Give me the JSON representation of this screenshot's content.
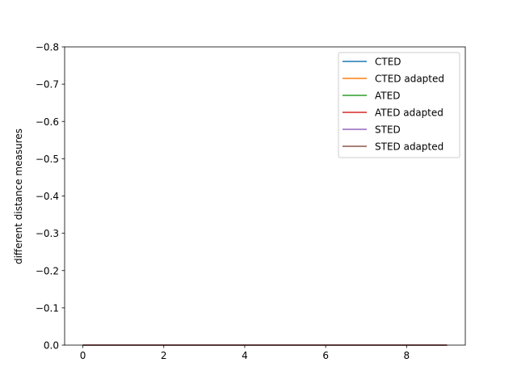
{
  "chart_data": {
    "type": "line",
    "title": "",
    "xlabel": "",
    "ylabel": "different distance measures",
    "xlim": [
      -0.45,
      9.45
    ],
    "ylim": [
      0.0,
      -0.8
    ],
    "y_inverted": true,
    "x_ticks": [
      0,
      2,
      4,
      6,
      8
    ],
    "x_tick_labels": [
      "0",
      "2",
      "4",
      "6",
      "8"
    ],
    "y_ticks": [
      0.0,
      -0.1,
      -0.2,
      -0.3,
      -0.4,
      -0.5,
      -0.6,
      -0.7,
      -0.8
    ],
    "y_tick_labels": [
      "0.0",
      "−0.1",
      "−0.2",
      "−0.3",
      "−0.4",
      "−0.5",
      "−0.6",
      "−0.7",
      "−0.8"
    ],
    "grid": false,
    "legend_position": "top-right",
    "series": [
      {
        "name": "CTED",
        "color": "#1f77b4",
        "x": [
          0,
          1,
          2,
          3,
          4,
          5,
          6,
          7,
          8,
          9
        ],
        "values": [
          0,
          0,
          0,
          0,
          0,
          0,
          0,
          0,
          0,
          0
        ]
      },
      {
        "name": "CTED adapted",
        "color": "#ff7f0e",
        "x": [
          0,
          1,
          2,
          3,
          4,
          5,
          6,
          7,
          8,
          9
        ],
        "values": [
          0,
          0,
          0,
          0,
          0,
          0,
          0,
          0,
          0,
          0
        ]
      },
      {
        "name": "ATED",
        "color": "#2ca02c",
        "x": [
          0,
          1,
          2,
          3,
          4,
          5,
          6,
          7,
          8,
          9
        ],
        "values": [
          0,
          0,
          0,
          0,
          0,
          0,
          0,
          0,
          0,
          0
        ]
      },
      {
        "name": "ATED adapted",
        "color": "#d62728",
        "x": [
          0,
          1,
          2,
          3,
          4,
          5,
          6,
          7,
          8,
          9
        ],
        "values": [
          0,
          0,
          0,
          0,
          0,
          0,
          0,
          0,
          0,
          0
        ]
      },
      {
        "name": "STED",
        "color": "#9467bd",
        "x": [
          0,
          1,
          2,
          3,
          4,
          5,
          6,
          7,
          8,
          9
        ],
        "values": [
          0,
          0,
          0,
          0,
          0,
          0,
          0,
          0,
          0,
          0
        ]
      },
      {
        "name": "STED adapted",
        "color": "#8c564b",
        "x": [
          0,
          1,
          2,
          3,
          4,
          5,
          6,
          7,
          8,
          9
        ],
        "values": [
          0,
          0,
          0,
          0,
          0,
          0,
          0,
          0,
          0,
          0
        ]
      }
    ]
  }
}
